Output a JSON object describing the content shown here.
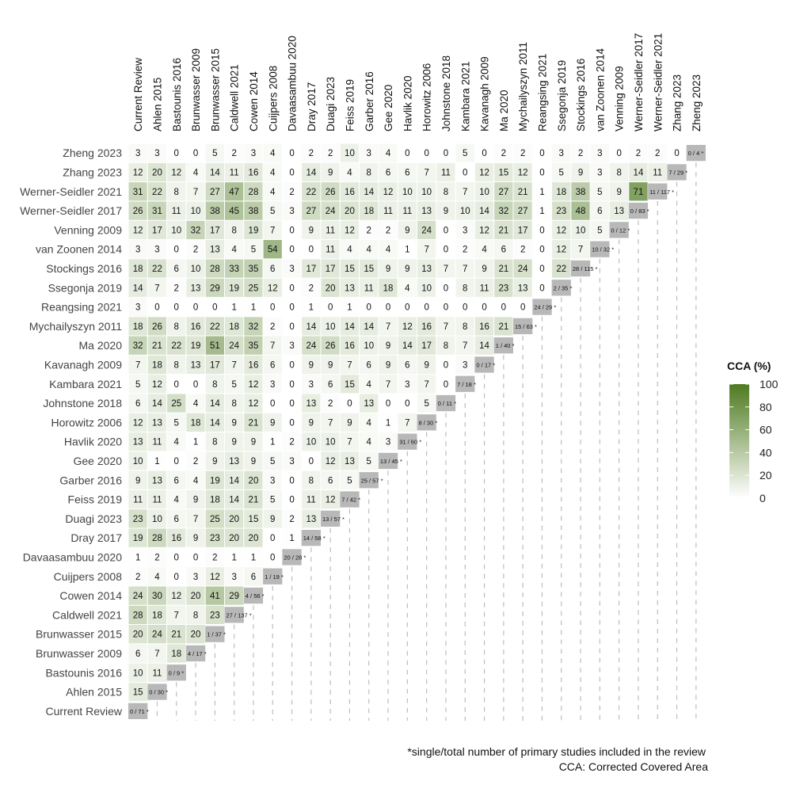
{
  "chart_data": {
    "type": "heatmap",
    "studies": [
      "Current Review",
      "Ahlen 2015",
      "Bastounis 2016",
      "Brunwasser 2009",
      "Brunwasser 2015",
      "Caldwell 2021",
      "Cowen 2014",
      "Cuijpers 2008",
      "Davaasambuu 2020",
      "Dray 2017",
      "Duagi 2023",
      "Feiss 2019",
      "Garber 2016",
      "Gee 2020",
      "Havlik 2020",
      "Horowitz 2006",
      "Johnstone 2018",
      "Kambara 2021",
      "Kavanagh 2009",
      "Ma 2020",
      "Mychailyszyn 2011",
      "Reangsing 2021",
      "Ssegonja 2019",
      "Stockings 2016",
      "van Zoonen 2014",
      "Venning 2009",
      "Werner-Seidler 2017",
      "Werner-Seidler 2021",
      "Zhang 2023",
      "Zheng 2023"
    ],
    "matrix": [
      [],
      [
        15
      ],
      [
        10,
        11
      ],
      [
        6,
        7,
        18
      ],
      [
        20,
        24,
        21,
        20
      ],
      [
        28,
        18,
        7,
        8,
        23
      ],
      [
        24,
        30,
        12,
        20,
        41,
        29
      ],
      [
        2,
        4,
        0,
        3,
        12,
        3,
        6
      ],
      [
        1,
        2,
        0,
        0,
        2,
        1,
        1,
        0
      ],
      [
        19,
        28,
        16,
        9,
        23,
        20,
        20,
        0,
        1
      ],
      [
        23,
        10,
        6,
        7,
        25,
        20,
        15,
        9,
        2,
        13
      ],
      [
        11,
        11,
        4,
        9,
        18,
        14,
        21,
        5,
        0,
        11,
        12
      ],
      [
        9,
        13,
        6,
        4,
        19,
        14,
        20,
        3,
        0,
        8,
        6,
        5
      ],
      [
        10,
        1,
        0,
        2,
        9,
        13,
        9,
        5,
        3,
        0,
        12,
        13,
        5
      ],
      [
        13,
        11,
        4,
        1,
        8,
        9,
        9,
        1,
        2,
        10,
        10,
        7,
        4,
        3
      ],
      [
        12,
        13,
        5,
        18,
        14,
        9,
        21,
        9,
        0,
        9,
        7,
        9,
        4,
        1,
        7
      ],
      [
        6,
        14,
        25,
        4,
        14,
        8,
        12,
        0,
        0,
        13,
        2,
        0,
        13,
        0,
        0,
        5
      ],
      [
        5,
        12,
        0,
        0,
        8,
        5,
        12,
        3,
        0,
        3,
        6,
        15,
        4,
        7,
        3,
        7,
        0
      ],
      [
        7,
        18,
        8,
        13,
        17,
        7,
        16,
        6,
        0,
        9,
        9,
        7,
        6,
        9,
        6,
        9,
        0,
        3
      ],
      [
        32,
        21,
        22,
        19,
        51,
        24,
        35,
        7,
        3,
        24,
        26,
        16,
        10,
        9,
        14,
        17,
        8,
        7,
        14
      ],
      [
        18,
        26,
        8,
        16,
        22,
        18,
        32,
        2,
        0,
        14,
        10,
        14,
        14,
        7,
        12,
        16,
        7,
        8,
        16,
        21
      ],
      [
        3,
        0,
        0,
        0,
        0,
        1,
        1,
        0,
        0,
        1,
        0,
        1,
        0,
        0,
        0,
        0,
        0,
        0,
        0,
        0,
        0
      ],
      [
        14,
        7,
        2,
        13,
        29,
        19,
        25,
        12,
        0,
        2,
        20,
        13,
        11,
        18,
        4,
        10,
        0,
        8,
        11,
        23,
        13,
        0
      ],
      [
        18,
        22,
        6,
        10,
        28,
        33,
        35,
        6,
        3,
        17,
        17,
        15,
        15,
        9,
        9,
        13,
        7,
        7,
        9,
        21,
        24,
        0,
        22
      ],
      [
        3,
        3,
        0,
        2,
        13,
        4,
        5,
        54,
        0,
        0,
        11,
        4,
        4,
        4,
        1,
        7,
        0,
        2,
        4,
        6,
        2,
        0,
        12,
        7
      ],
      [
        12,
        17,
        10,
        32,
        17,
        8,
        19,
        7,
        0,
        9,
        11,
        12,
        2,
        2,
        9,
        24,
        0,
        3,
        12,
        21,
        17,
        0,
        12,
        10,
        5
      ],
      [
        26,
        31,
        11,
        10,
        38,
        45,
        38,
        5,
        3,
        27,
        24,
        20,
        18,
        11,
        11,
        13,
        9,
        10,
        14,
        32,
        27,
        1,
        23,
        48,
        6,
        13
      ],
      [
        31,
        22,
        8,
        7,
        27,
        47,
        28,
        4,
        2,
        22,
        26,
        16,
        14,
        12,
        10,
        10,
        8,
        7,
        10,
        27,
        21,
        1,
        18,
        38,
        5,
        9,
        71
      ],
      [
        12,
        20,
        12,
        4,
        14,
        11,
        16,
        4,
        0,
        14,
        9,
        4,
        8,
        6,
        6,
        7,
        11,
        0,
        12,
        15,
        12,
        0,
        5,
        9,
        3,
        8,
        14,
        11
      ],
      [
        3,
        3,
        0,
        0,
        5,
        2,
        3,
        4,
        0,
        2,
        2,
        10,
        3,
        4,
        0,
        0,
        0,
        5,
        0,
        2,
        2,
        0,
        3,
        2,
        3,
        0,
        2,
        2,
        0
      ]
    ],
    "diagonal": [
      "0 / 71",
      "0 / 30",
      "0 / 9",
      "4 / 17",
      "1 / 37",
      "27 / 137",
      "4 / 56",
      "1 / 19",
      "20 / 28",
      "14 / 58",
      "13 / 57",
      "7 / 42",
      "25 / 57",
      "13 / 45",
      "31 / 60",
      "8 / 30",
      "0 / 11",
      "7 / 18",
      "0 / 17",
      "1 / 40",
      "15 / 63",
      "24 / 29",
      "2 / 35",
      "28 / 115",
      "10 / 32",
      "0 / 12",
      "0 / 83",
      "11 / 117",
      "7 / 29",
      "0 / 4"
    ],
    "diagonal_marker": "*",
    "color_scale": {
      "low": "#ffffff",
      "high": "#4e7a1f",
      "range": [
        0,
        100
      ]
    },
    "diagonal_color": "#b8b8b8",
    "legend": {
      "title": "CCA (%)",
      "ticks": [
        0,
        20,
        40,
        60,
        80,
        100
      ],
      "position": "right"
    },
    "footnotes": [
      "*single/total number of primary studies included in the review",
      "CCA: Corrected Covered Area"
    ]
  }
}
